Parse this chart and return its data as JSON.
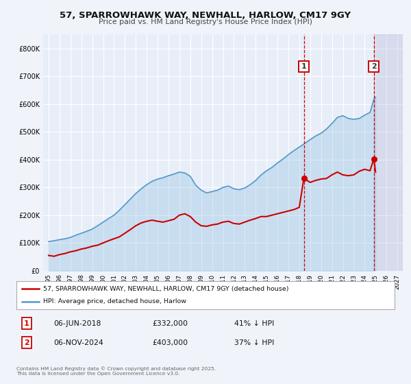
{
  "title": "57, SPARROWHAWK WAY, NEWHALL, HARLOW, CM17 9GY",
  "subtitle": "Price paid vs. HM Land Registry's House Price Index (HPI)",
  "bg_color": "#f0f4fa",
  "plot_bg_color": "#e8eef8",
  "grid_color": "#ffffff",
  "red_line_label": "57, SPARROWHAWK WAY, NEWHALL, HARLOW, CM17 9GY (detached house)",
  "blue_line_label": "HPI: Average price, detached house, Harlow",
  "annotation1_date": "06-JUN-2018",
  "annotation1_price": "£332,000",
  "annotation1_hpi": "41% ↓ HPI",
  "annotation2_date": "06-NOV-2024",
  "annotation2_price": "£403,000",
  "annotation2_hpi": "37% ↓ HPI",
  "copyright": "Contains HM Land Registry data © Crown copyright and database right 2025.\nThis data is licensed under the Open Government Licence v3.0.",
  "vline1_x": 2018.42,
  "vline2_x": 2024.84,
  "marker1_red_y": 332000,
  "marker2_red_y": 403000,
  "xlim": [
    1994.5,
    2027.5
  ],
  "ylim": [
    0,
    850000
  ],
  "yticks": [
    0,
    100000,
    200000,
    300000,
    400000,
    500000,
    600000,
    700000,
    800000
  ],
  "xticks": [
    1995,
    1996,
    1997,
    1998,
    1999,
    2000,
    2001,
    2002,
    2003,
    2004,
    2005,
    2006,
    2007,
    2008,
    2009,
    2010,
    2011,
    2012,
    2013,
    2014,
    2015,
    2016,
    2017,
    2018,
    2019,
    2020,
    2021,
    2022,
    2023,
    2024,
    2025,
    2026,
    2027
  ],
  "red_x": [
    1995.0,
    1995.5,
    1996.0,
    1996.5,
    1997.0,
    1997.5,
    1998.0,
    1998.5,
    1999.0,
    1999.5,
    2000.0,
    2000.5,
    2001.0,
    2001.5,
    2002.0,
    2002.5,
    2003.0,
    2003.5,
    2004.0,
    2004.5,
    2005.0,
    2005.5,
    2006.0,
    2006.5,
    2007.0,
    2007.5,
    2008.0,
    2008.5,
    2009.0,
    2009.5,
    2010.0,
    2010.5,
    2011.0,
    2011.5,
    2012.0,
    2012.5,
    2013.0,
    2013.5,
    2014.0,
    2014.5,
    2015.0,
    2015.5,
    2016.0,
    2016.5,
    2017.0,
    2017.5,
    2018.0,
    2018.42,
    2019.0,
    2019.5,
    2020.0,
    2020.5,
    2021.0,
    2021.5,
    2022.0,
    2022.5,
    2023.0,
    2023.5,
    2024.0,
    2024.5,
    2024.84,
    2025.0
  ],
  "red_y": [
    55000,
    52000,
    58000,
    62000,
    68000,
    72000,
    78000,
    82000,
    88000,
    92000,
    100000,
    108000,
    115000,
    122000,
    135000,
    148000,
    162000,
    172000,
    178000,
    182000,
    178000,
    175000,
    180000,
    185000,
    200000,
    205000,
    195000,
    175000,
    162000,
    160000,
    165000,
    168000,
    175000,
    178000,
    170000,
    168000,
    175000,
    182000,
    188000,
    195000,
    195000,
    200000,
    205000,
    210000,
    215000,
    220000,
    228000,
    332000,
    318000,
    325000,
    330000,
    332000,
    345000,
    355000,
    345000,
    342000,
    345000,
    358000,
    365000,
    360000,
    403000,
    355000
  ],
  "blue_x": [
    1995.0,
    1995.5,
    1996.0,
    1996.5,
    1997.0,
    1997.5,
    1998.0,
    1998.5,
    1999.0,
    1999.5,
    2000.0,
    2000.5,
    2001.0,
    2001.5,
    2002.0,
    2002.5,
    2003.0,
    2003.5,
    2004.0,
    2004.5,
    2005.0,
    2005.5,
    2006.0,
    2006.5,
    2007.0,
    2007.5,
    2008.0,
    2008.5,
    2009.0,
    2009.5,
    2010.0,
    2010.5,
    2011.0,
    2011.5,
    2012.0,
    2012.5,
    2013.0,
    2013.5,
    2014.0,
    2014.5,
    2015.0,
    2015.5,
    2016.0,
    2016.5,
    2017.0,
    2017.5,
    2018.0,
    2018.5,
    2019.0,
    2019.5,
    2020.0,
    2020.5,
    2021.0,
    2021.5,
    2022.0,
    2022.5,
    2023.0,
    2023.5,
    2024.0,
    2024.5,
    2024.84,
    2025.0
  ],
  "blue_y": [
    105000,
    108000,
    112000,
    115000,
    120000,
    128000,
    135000,
    142000,
    150000,
    162000,
    175000,
    188000,
    200000,
    218000,
    238000,
    258000,
    278000,
    295000,
    310000,
    322000,
    330000,
    335000,
    342000,
    348000,
    355000,
    352000,
    340000,
    308000,
    290000,
    280000,
    285000,
    290000,
    300000,
    305000,
    295000,
    292000,
    298000,
    310000,
    325000,
    345000,
    360000,
    372000,
    388000,
    402000,
    418000,
    432000,
    445000,
    458000,
    472000,
    485000,
    495000,
    510000,
    530000,
    552000,
    558000,
    548000,
    545000,
    548000,
    560000,
    570000,
    617000,
    625000
  ]
}
